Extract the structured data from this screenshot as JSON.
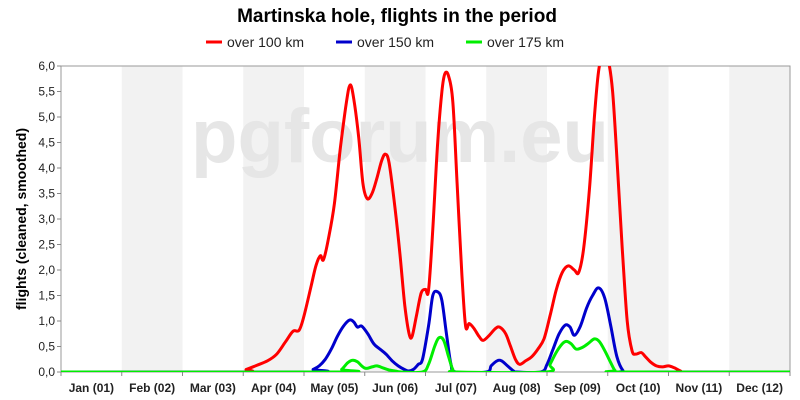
{
  "chart_data": {
    "type": "line",
    "title": "Martinska hole, flights in the period",
    "ylabel": "flights (cleaned, smoothed)",
    "xlabel": "",
    "watermark": "pgforum.eu",
    "ylim": [
      0,
      6
    ],
    "xlim": [
      0,
      12
    ],
    "y_ticks": [
      "0,0",
      "0,5",
      "1,0",
      "1,5",
      "2,0",
      "2,5",
      "3,0",
      "3,5",
      "4,0",
      "4,5",
      "5,0",
      "5,5",
      "6,0"
    ],
    "categories": [
      "Jan (01)",
      "Feb (02)",
      "Mar (03)",
      "Apr (04)",
      "May (05)",
      "Jun (06)",
      "Jul (07)",
      "Aug (08)",
      "Sep (09)",
      "Oct (10)",
      "Nov (11)",
      "Dec (12)"
    ],
    "legend_position": "top-center",
    "grid": "alternating month bands",
    "series": [
      {
        "name": "over 100 km",
        "color": "#ff0000",
        "points": [
          [
            0,
            0
          ],
          [
            2.9,
            0
          ],
          [
            3.05,
            0.05
          ],
          [
            3.2,
            0.12
          ],
          [
            3.4,
            0.22
          ],
          [
            3.55,
            0.35
          ],
          [
            3.7,
            0.6
          ],
          [
            3.82,
            0.8
          ],
          [
            3.92,
            0.82
          ],
          [
            4.0,
            1.1
          ],
          [
            4.12,
            1.7
          ],
          [
            4.2,
            2.1
          ],
          [
            4.27,
            2.28
          ],
          [
            4.32,
            2.2
          ],
          [
            4.4,
            2.6
          ],
          [
            4.5,
            3.3
          ],
          [
            4.6,
            4.4
          ],
          [
            4.7,
            5.3
          ],
          [
            4.76,
            5.63
          ],
          [
            4.82,
            5.35
          ],
          [
            4.9,
            4.6
          ],
          [
            4.97,
            3.7
          ],
          [
            5.04,
            3.4
          ],
          [
            5.12,
            3.5
          ],
          [
            5.2,
            3.8
          ],
          [
            5.28,
            4.15
          ],
          [
            5.34,
            4.27
          ],
          [
            5.4,
            4.1
          ],
          [
            5.5,
            3.2
          ],
          [
            5.58,
            2.3
          ],
          [
            5.66,
            1.3
          ],
          [
            5.73,
            0.75
          ],
          [
            5.78,
            0.7
          ],
          [
            5.85,
            1.1
          ],
          [
            5.93,
            1.55
          ],
          [
            6.0,
            1.62
          ],
          [
            6.05,
            1.6
          ],
          [
            6.12,
            2.8
          ],
          [
            6.2,
            4.5
          ],
          [
            6.27,
            5.5
          ],
          [
            6.32,
            5.85
          ],
          [
            6.38,
            5.8
          ],
          [
            6.45,
            5.3
          ],
          [
            6.52,
            3.7
          ],
          [
            6.6,
            1.9
          ],
          [
            6.66,
            0.9
          ],
          [
            6.72,
            0.95
          ],
          [
            6.8,
            0.85
          ],
          [
            6.88,
            0.7
          ],
          [
            6.95,
            0.62
          ],
          [
            7.05,
            0.72
          ],
          [
            7.15,
            0.85
          ],
          [
            7.22,
            0.88
          ],
          [
            7.32,
            0.75
          ],
          [
            7.4,
            0.5
          ],
          [
            7.48,
            0.25
          ],
          [
            7.55,
            0.15
          ],
          [
            7.65,
            0.22
          ],
          [
            7.75,
            0.3
          ],
          [
            7.85,
            0.45
          ],
          [
            7.95,
            0.65
          ],
          [
            8.05,
            1.1
          ],
          [
            8.15,
            1.6
          ],
          [
            8.25,
            1.95
          ],
          [
            8.35,
            2.08
          ],
          [
            8.45,
            2.0
          ],
          [
            8.52,
            1.95
          ],
          [
            8.6,
            2.4
          ],
          [
            8.7,
            3.6
          ],
          [
            8.78,
            5.0
          ],
          [
            8.85,
            5.9
          ],
          [
            8.92,
            6.25
          ],
          [
            9.0,
            6.15
          ],
          [
            9.08,
            5.5
          ],
          [
            9.16,
            4.0
          ],
          [
            9.24,
            2.4
          ],
          [
            9.32,
            1.0
          ],
          [
            9.4,
            0.42
          ],
          [
            9.46,
            0.35
          ],
          [
            9.55,
            0.38
          ],
          [
            9.62,
            0.3
          ],
          [
            9.7,
            0.2
          ],
          [
            9.8,
            0.12
          ],
          [
            9.9,
            0.1
          ],
          [
            10.0,
            0.12
          ],
          [
            10.1,
            0.08
          ],
          [
            10.2,
            0.02
          ],
          [
            10.3,
            0
          ],
          [
            12,
            0
          ]
        ]
      },
      {
        "name": "over 150 km",
        "color": "#0000cc",
        "points": [
          [
            0,
            0
          ],
          [
            4.08,
            0
          ],
          [
            4.15,
            0.05
          ],
          [
            4.25,
            0.12
          ],
          [
            4.35,
            0.25
          ],
          [
            4.45,
            0.45
          ],
          [
            4.55,
            0.7
          ],
          [
            4.65,
            0.9
          ],
          [
            4.75,
            1.02
          ],
          [
            4.82,
            0.98
          ],
          [
            4.88,
            0.88
          ],
          [
            4.95,
            0.9
          ],
          [
            5.05,
            0.75
          ],
          [
            5.15,
            0.55
          ],
          [
            5.25,
            0.45
          ],
          [
            5.35,
            0.35
          ],
          [
            5.45,
            0.22
          ],
          [
            5.55,
            0.12
          ],
          [
            5.65,
            0.05
          ],
          [
            5.72,
            0.02
          ],
          [
            5.8,
            0.05
          ],
          [
            5.88,
            0.15
          ],
          [
            5.95,
            0.25
          ],
          [
            6.05,
            0.9
          ],
          [
            6.12,
            1.5
          ],
          [
            6.2,
            1.57
          ],
          [
            6.27,
            1.4
          ],
          [
            6.35,
            0.7
          ],
          [
            6.42,
            0.15
          ],
          [
            6.5,
            0
          ],
          [
            7.0,
            0
          ],
          [
            7.08,
            0.12
          ],
          [
            7.18,
            0.22
          ],
          [
            7.25,
            0.22
          ],
          [
            7.35,
            0.12
          ],
          [
            7.45,
            0.02
          ],
          [
            7.5,
            0
          ],
          [
            7.9,
            0
          ],
          [
            8.0,
            0.15
          ],
          [
            8.1,
            0.45
          ],
          [
            8.2,
            0.75
          ],
          [
            8.3,
            0.92
          ],
          [
            8.38,
            0.88
          ],
          [
            8.45,
            0.72
          ],
          [
            8.55,
            0.9
          ],
          [
            8.65,
            1.25
          ],
          [
            8.75,
            1.5
          ],
          [
            8.85,
            1.65
          ],
          [
            8.95,
            1.45
          ],
          [
            9.05,
            0.9
          ],
          [
            9.15,
            0.3
          ],
          [
            9.25,
            0.03
          ],
          [
            9.35,
            0
          ],
          [
            12,
            0
          ]
        ]
      },
      {
        "name": "over 175 km",
        "color": "#00ee00",
        "points": [
          [
            0,
            0
          ],
          [
            4.55,
            0
          ],
          [
            4.62,
            0.05
          ],
          [
            4.72,
            0.18
          ],
          [
            4.8,
            0.23
          ],
          [
            4.88,
            0.2
          ],
          [
            4.95,
            0.12
          ],
          [
            5.02,
            0.07
          ],
          [
            5.12,
            0.1
          ],
          [
            5.2,
            0.12
          ],
          [
            5.3,
            0.08
          ],
          [
            5.4,
            0.04
          ],
          [
            5.5,
            0.02
          ],
          [
            5.6,
            0
          ],
          [
            5.95,
            0
          ],
          [
            6.05,
            0.15
          ],
          [
            6.15,
            0.5
          ],
          [
            6.22,
            0.67
          ],
          [
            6.3,
            0.62
          ],
          [
            6.38,
            0.3
          ],
          [
            6.45,
            0.05
          ],
          [
            6.52,
            0
          ],
          [
            7.98,
            0
          ],
          [
            8.05,
            0.15
          ],
          [
            8.15,
            0.38
          ],
          [
            8.25,
            0.55
          ],
          [
            8.32,
            0.6
          ],
          [
            8.4,
            0.55
          ],
          [
            8.48,
            0.45
          ],
          [
            8.58,
            0.48
          ],
          [
            8.68,
            0.56
          ],
          [
            8.78,
            0.65
          ],
          [
            8.86,
            0.6
          ],
          [
            8.95,
            0.42
          ],
          [
            9.05,
            0.18
          ],
          [
            9.12,
            0.03
          ],
          [
            9.2,
            0
          ],
          [
            12,
            0
          ]
        ]
      }
    ]
  }
}
